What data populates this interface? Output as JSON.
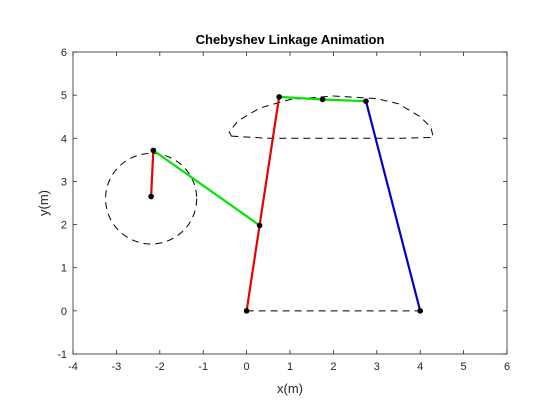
{
  "chart_data": {
    "type": "line",
    "title": "Chebyshev Linkage Animation",
    "xlabel": "x(m)",
    "ylabel": "y(m)",
    "xlim": [
      -4,
      6
    ],
    "ylim": [
      -1,
      6
    ],
    "xticks": [
      "-4",
      "-3",
      "-2",
      "-1",
      "0",
      "1",
      "2",
      "3",
      "4",
      "5",
      "6"
    ],
    "yticks": [
      "-1",
      "0",
      "1",
      "2",
      "3",
      "4",
      "5",
      "6"
    ],
    "grid": false,
    "legend": "none",
    "colors": {
      "crank": "#e60000",
      "coupler": "#00e600",
      "rocker": "#0000cc",
      "trace": "#000000",
      "joint": "#000000",
      "axes": "#262626"
    },
    "crank_circle": {
      "center": [
        -2.2,
        2.6
      ],
      "radius": 1.05
    },
    "coupler_path": {
      "points": [
        [
          -0.35,
          4.05
        ],
        [
          0.5,
          4.0
        ],
        [
          1.5,
          4.0
        ],
        [
          2.5,
          4.0
        ],
        [
          3.5,
          4.0
        ],
        [
          4.3,
          4.02
        ],
        [
          4.25,
          4.25
        ],
        [
          4.0,
          4.5
        ],
        [
          3.5,
          4.8
        ],
        [
          3.0,
          4.92
        ],
        [
          2.0,
          4.98
        ],
        [
          1.0,
          4.9
        ],
        [
          0.3,
          4.7
        ],
        [
          -0.2,
          4.4
        ],
        [
          -0.4,
          4.15
        ],
        [
          -0.35,
          4.05
        ]
      ]
    },
    "ground_line": {
      "x": [
        0,
        4
      ],
      "y": [
        0,
        0
      ]
    },
    "links": [
      {
        "role": "crank",
        "x": [
          -2.2,
          -2.15
        ],
        "y": [
          2.65,
          3.72
        ]
      },
      {
        "role": "coupler",
        "x": [
          -2.15,
          0.3
        ],
        "y": [
          3.72,
          1.98
        ]
      },
      {
        "role": "crank",
        "x": [
          0.0,
          0.75
        ],
        "y": [
          0.0,
          4.96
        ]
      },
      {
        "role": "coupler",
        "x": [
          0.75,
          1.75,
          2.75
        ],
        "y": [
          4.96,
          4.9,
          4.86
        ]
      },
      {
        "role": "rocker",
        "x": [
          2.75,
          4.0
        ],
        "y": [
          4.86,
          0.0
        ]
      }
    ],
    "joints": {
      "x": [
        -2.2,
        -2.15,
        0.3,
        0.0,
        0.75,
        1.75,
        2.75,
        4.0
      ],
      "y": [
        2.65,
        3.72,
        1.98,
        0.0,
        4.96,
        4.9,
        4.86,
        0.0
      ]
    }
  }
}
